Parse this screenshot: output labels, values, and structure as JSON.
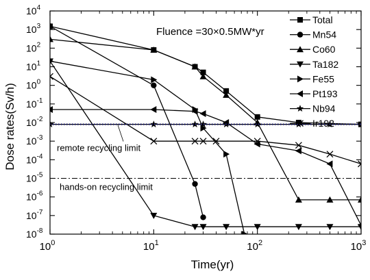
{
  "chart_data": {
    "type": "line",
    "title": "",
    "annotation": "Fluence =30×0.5MW*yr",
    "xlabel": "Time(yr)",
    "ylabel": "Dose rates(Sv/h)",
    "xscale": "log",
    "yscale": "log",
    "xlim": [
      1,
      1000
    ],
    "ylim": [
      1e-08,
      10000
    ],
    "x_ticks": [
      {
        "base": "10",
        "exp": "0"
      },
      {
        "base": "10",
        "exp": "1"
      },
      {
        "base": "10",
        "exp": "2"
      },
      {
        "base": "10",
        "exp": "3"
      }
    ],
    "y_ticks": [
      {
        "base": "10",
        "exp": "4"
      },
      {
        "base": "10",
        "exp": "3"
      },
      {
        "base": "10",
        "exp": "2"
      },
      {
        "base": "10",
        "exp": "1"
      },
      {
        "base": "10",
        "exp": "0"
      },
      {
        "base": "10",
        "exp": "-1"
      },
      {
        "base": "10",
        "exp": "-2"
      },
      {
        "base": "10",
        "exp": "-3"
      },
      {
        "base": "10",
        "exp": "-4"
      },
      {
        "base": "10",
        "exp": "-5"
      },
      {
        "base": "10",
        "exp": "-6"
      },
      {
        "base": "10",
        "exp": "-7"
      },
      {
        "base": "10",
        "exp": "-8"
      }
    ],
    "legend_position": "top-right",
    "grid": false,
    "series": [
      {
        "name": "Total",
        "marker": "square",
        "x": [
          1,
          10,
          25,
          30,
          50,
          100,
          250,
          1000
        ],
        "y": [
          1500,
          80,
          10,
          5,
          0.5,
          0.02,
          0.01,
          0.008
        ]
      },
      {
        "name": "Mn54",
        "marker": "circle",
        "x": [
          1,
          10,
          25,
          30
        ],
        "y": [
          1500,
          1,
          5e-06,
          8e-08
        ]
      },
      {
        "name": "Co60",
        "marker": "triangle-up",
        "x": [
          1,
          10,
          25,
          30,
          50,
          100,
          250,
          500,
          1000
        ],
        "y": [
          300,
          80,
          10,
          3,
          0.3,
          0.01,
          7e-07,
          7e-07,
          7e-07
        ]
      },
      {
        "name": "Ta182",
        "marker": "triangle-down",
        "x": [
          1,
          10,
          25,
          30,
          50,
          100,
          250,
          500,
          1000
        ],
        "y": [
          20,
          1e-07,
          2.5e-08,
          2.5e-08,
          2.5e-08,
          2.5e-08,
          2.5e-08,
          2.5e-08,
          2.5e-08
        ]
      },
      {
        "name": "Fe55",
        "marker": "triangle-right",
        "x": [
          1,
          10,
          25,
          30,
          50,
          75
        ],
        "y": [
          20,
          2,
          0.05,
          0.005,
          0.0002,
          1e-08
        ]
      },
      {
        "name": "Pt193",
        "marker": "triangle-left",
        "x": [
          1,
          10,
          25,
          30,
          50,
          100,
          250,
          500,
          1000
        ],
        "y": [
          0.05,
          0.05,
          0.04,
          0.03,
          0.01,
          0.0007,
          0.0003,
          6e-05,
          3e-08
        ]
      },
      {
        "name": "Nb94",
        "marker": "star",
        "x": [
          1,
          10,
          25,
          30,
          50,
          100,
          250,
          500,
          1000
        ],
        "y": [
          0.008,
          0.008,
          0.008,
          0.008,
          0.008,
          0.008,
          0.008,
          0.008,
          0.008
        ]
      },
      {
        "name": "Ir192",
        "marker": "x",
        "x": [
          1,
          10,
          25,
          30,
          40,
          100,
          250,
          500,
          1000
        ],
        "y": [
          3,
          0.001,
          0.001,
          0.001,
          0.001,
          0.001,
          0.0006,
          0.0002,
          6e-05
        ]
      }
    ],
    "reference_lines": [
      {
        "label": "remote recycling limit",
        "y": 0.008,
        "style": "dotted",
        "color": "#2b2b7a"
      },
      {
        "label": "hands-on recycling limit",
        "y": 1e-05,
        "style": "dash-dot",
        "color": "#000000"
      }
    ]
  }
}
